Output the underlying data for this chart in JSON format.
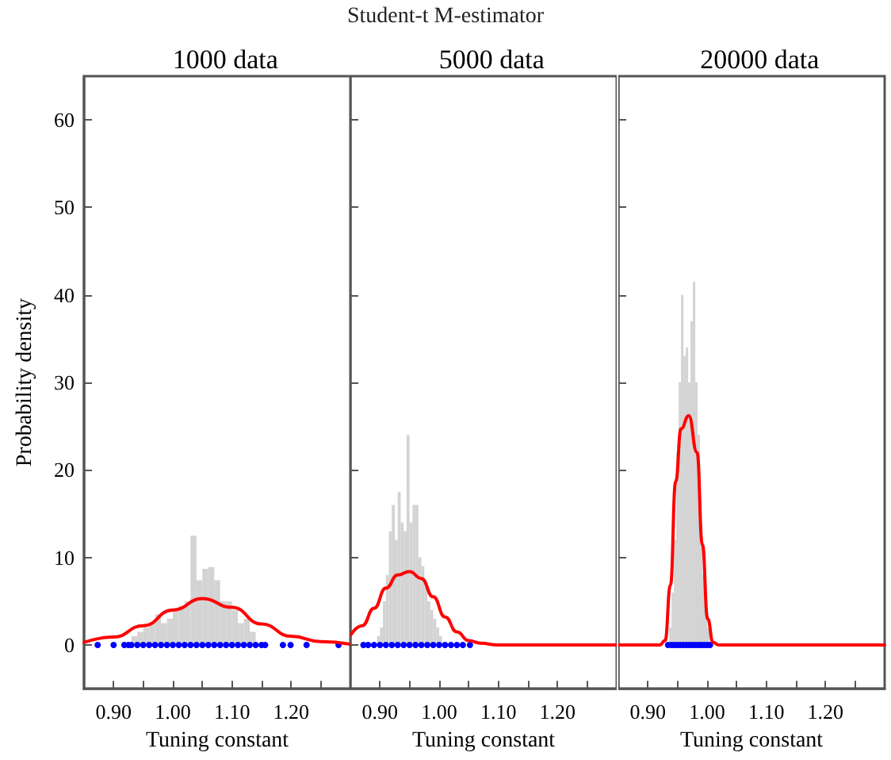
{
  "chart_data": [
    {
      "type": "histogram",
      "title": "1000 data",
      "xlabel": "Tuning constant",
      "ylabel": "Probability density",
      "annotations": [
        "Student-t M-estimator"
      ],
      "xlim": [
        0.85,
        1.3
      ],
      "xticks": [
        {
          "value": 0.9,
          "label": "0.90"
        },
        {
          "value": 0.95,
          "label": null
        },
        {
          "value": 1.0,
          "label": "1.00"
        },
        {
          "value": 1.05,
          "label": null
        },
        {
          "value": 1.1,
          "label": "1.10"
        },
        {
          "value": 1.15,
          "label": null
        },
        {
          "value": 1.2,
          "label": "1.20"
        },
        {
          "value": 1.25,
          "label": null
        }
      ],
      "ylim": [
        -5,
        65
      ],
      "yticks": [
        0,
        10,
        20,
        30,
        40,
        50,
        60
      ],
      "series": [
        {
          "color": "#d3d3d3",
          "bins": [
            0.93,
            0.94,
            0.95,
            0.96,
            0.97,
            0.98,
            0.99,
            1.0,
            1.01,
            1.02,
            1.03,
            1.04,
            1.05,
            1.06,
            1.07,
            1.08,
            1.09,
            1.1,
            1.11,
            1.12,
            1.13,
            1.14
          ],
          "values": [
            1,
            1.5,
            2,
            2.5,
            3.5,
            2.5,
            3,
            4,
            4.5,
            5,
            12.5,
            7.4,
            8.7,
            8.9,
            7.4,
            5,
            5,
            4,
            2.5,
            3,
            1.5
          ]
        },
        {
          "type": "line",
          "color": "#ff0000",
          "x": [
            0.85,
            0.9,
            0.95,
            1.0,
            1.05,
            1.1,
            1.15,
            1.2,
            1.25,
            1.3
          ],
          "values": [
            0.3,
            0.9,
            2.2,
            4.0,
            5.3,
            4.3,
            2.4,
            1.0,
            0.4,
            0.1
          ]
        },
        {
          "type": "scatter",
          "color": "#0000ff",
          "x": [
            0.873,
            0.9,
            0.918,
            0.925,
            0.93,
            0.94,
            0.95,
            0.96,
            0.97,
            0.98,
            0.99,
            1.0,
            1.01,
            1.02,
            1.03,
            1.04,
            1.05,
            1.06,
            1.07,
            1.08,
            1.09,
            1.1,
            1.11,
            1.12,
            1.13,
            1.14,
            1.15,
            1.156,
            1.186,
            1.199,
            1.226,
            1.28
          ],
          "values": [
            0,
            0,
            0,
            0,
            0,
            0,
            0,
            0,
            0,
            0,
            0,
            0,
            0,
            0,
            0,
            0,
            0,
            0,
            0,
            0,
            0,
            0,
            0,
            0,
            0,
            0,
            0,
            0,
            0,
            0,
            0,
            0
          ]
        }
      ]
    },
    {
      "type": "histogram",
      "title": "5000 data",
      "xlabel": "Tuning constant",
      "tick_labels": "x",
      "xlim": [
        0.85,
        1.3
      ],
      "xticks": [
        {
          "value": 0.9,
          "label": "0.90"
        },
        {
          "value": 0.95,
          "label": null
        },
        {
          "value": 1.0,
          "label": "1.00"
        },
        {
          "value": 1.05,
          "label": null
        },
        {
          "value": 1.1,
          "label": "1.10"
        },
        {
          "value": 1.15,
          "label": null
        },
        {
          "value": 1.2,
          "label": "1.20"
        },
        {
          "value": 1.25,
          "label": null
        }
      ],
      "ylim": [
        -5,
        65
      ],
      "yticks": [
        0,
        10,
        20,
        30,
        40,
        50,
        60
      ],
      "series": [
        {
          "color": "#d3d3d3",
          "bins": [
            0.895,
            0.9,
            0.905,
            0.91,
            0.915,
            0.92,
            0.925,
            0.93,
            0.935,
            0.94,
            0.945,
            0.95,
            0.955,
            0.96,
            0.965,
            0.97,
            0.975,
            0.98,
            0.985,
            0.99,
            0.995,
            1.0,
            1.005
          ],
          "values": [
            1,
            2,
            5,
            8,
            13,
            16,
            12,
            17.5,
            14,
            13,
            24,
            14,
            16,
            16,
            10,
            9,
            7,
            5,
            4,
            3,
            2,
            1
          ]
        },
        {
          "type": "line",
          "color": "#ff0000",
          "x": [
            0.85,
            0.87,
            0.89,
            0.91,
            0.93,
            0.95,
            0.97,
            0.99,
            1.01,
            1.03,
            1.05,
            1.07,
            1.1,
            1.2,
            1.3
          ],
          "values": [
            1.1,
            2.2,
            4.2,
            6.5,
            8.0,
            8.4,
            7.6,
            5.5,
            3.2,
            1.5,
            0.5,
            0.2,
            0,
            0,
            0
          ]
        },
        {
          "type": "scatter",
          "color": "#0000ff",
          "x": [
            0.872,
            0.88,
            0.89,
            0.9,
            0.91,
            0.92,
            0.93,
            0.94,
            0.95,
            0.96,
            0.97,
            0.98,
            0.99,
            1.0,
            1.01,
            1.02,
            1.03,
            1.04,
            1.052
          ],
          "values": [
            0,
            0,
            0,
            0,
            0,
            0,
            0,
            0,
            0,
            0,
            0,
            0,
            0,
            0,
            0,
            0,
            0,
            0,
            0
          ]
        }
      ]
    },
    {
      "type": "histogram",
      "title": "20000 data",
      "xlabel": "Tuning constant",
      "tick_labels": "x",
      "xlim": [
        0.85,
        1.3
      ],
      "xticks": [
        {
          "value": 0.9,
          "label": "0.90"
        },
        {
          "value": 0.95,
          "label": null
        },
        {
          "value": 1.0,
          "label": "1.00"
        },
        {
          "value": 1.05,
          "label": null
        },
        {
          "value": 1.1,
          "label": "1.10"
        },
        {
          "value": 1.15,
          "label": null
        },
        {
          "value": 1.2,
          "label": "1.20"
        },
        {
          "value": 1.25,
          "label": null
        }
      ],
      "ylim": [
        -5,
        65
      ],
      "yticks": [
        0,
        10,
        20,
        30,
        40,
        50,
        60
      ],
      "series": [
        {
          "color": "#d3d3d3",
          "bins": [
            0.936,
            0.94,
            0.944,
            0.948,
            0.952,
            0.956,
            0.96,
            0.964,
            0.968,
            0.972,
            0.976,
            0.98,
            0.984,
            0.988,
            0.992,
            0.996,
            1.0,
            1.004
          ],
          "values": [
            2,
            6,
            12,
            22,
            30,
            40,
            33,
            34,
            30,
            37,
            41.5,
            30,
            24,
            14,
            8,
            4,
            2
          ]
        },
        {
          "type": "line",
          "color": "#ff0000",
          "x": [
            0.85,
            0.92,
            0.929,
            0.938,
            0.947,
            0.956,
            0.969,
            0.983,
            0.992,
            1.001,
            1.01,
            1.02,
            1.3
          ],
          "values": [
            0,
            0,
            0.5,
            6.8,
            18.7,
            24.7,
            26.2,
            22,
            11.5,
            3,
            0.3,
            0,
            0
          ]
        },
        {
          "type": "scatter",
          "color": "#0000ff",
          "x": [
            0.934,
            0.94,
            0.945,
            0.95,
            0.955,
            0.96,
            0.965,
            0.97,
            0.975,
            0.98,
            0.985,
            0.99,
            0.995,
            1.0,
            1.005
          ],
          "values": [
            0,
            0,
            0,
            0,
            0,
            0,
            0,
            0,
            0,
            0,
            0,
            0,
            0,
            0,
            0
          ]
        }
      ]
    }
  ]
}
